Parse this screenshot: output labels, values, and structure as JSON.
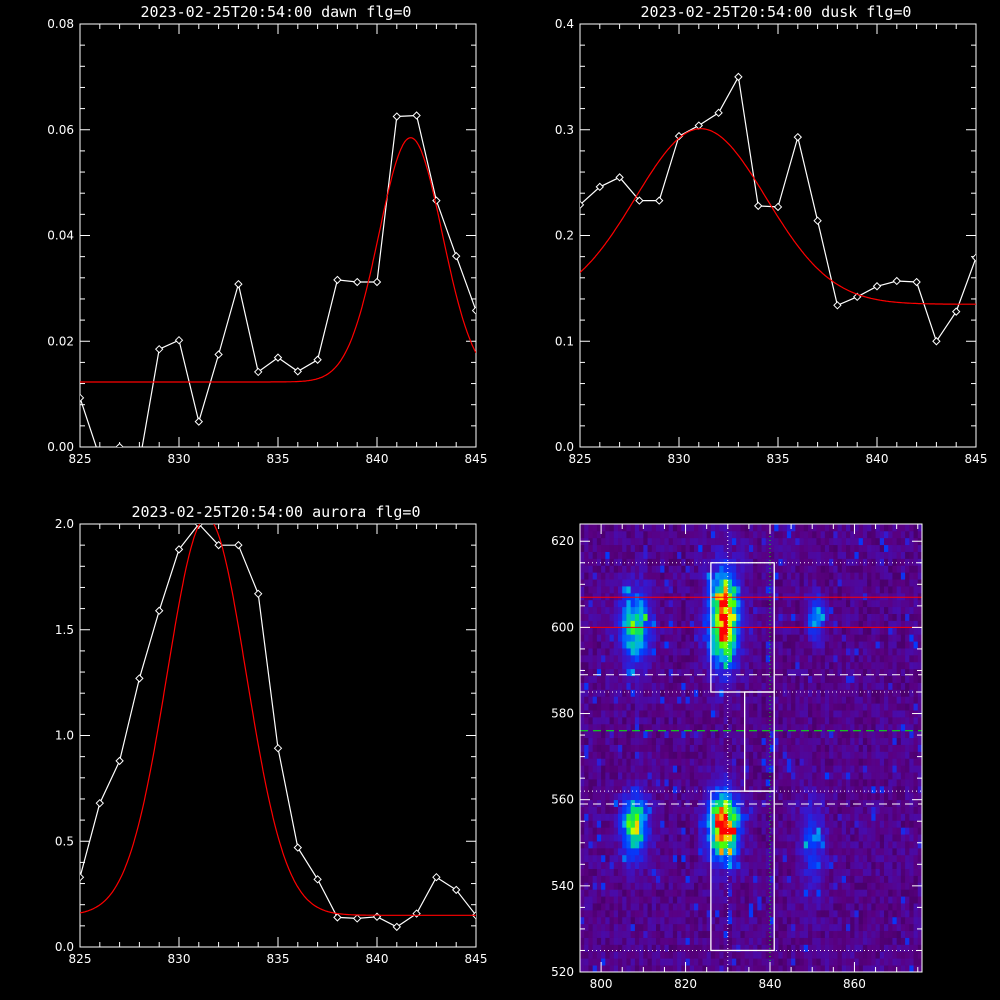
{
  "chart_data": [
    {
      "type": "line",
      "title": "2023-02-25T20:54:00 dawn flg=0",
      "xlim": [
        825,
        845
      ],
      "ylim": [
        0,
        0.08
      ],
      "xticks": [
        825,
        830,
        835,
        840,
        845
      ],
      "yticks": [
        0.0,
        0.02,
        0.04,
        0.06,
        0.08
      ],
      "ytick_labels": [
        "0.00",
        "0.02",
        "0.04",
        "0.06",
        "0.08"
      ],
      "series": [
        {
          "color": "#ffffff",
          "marker": "diamond",
          "x": [
            825,
            826,
            827,
            828,
            829,
            830,
            831,
            832,
            833,
            834,
            835,
            836,
            837,
            838,
            839,
            840,
            841,
            842,
            843,
            844,
            845
          ],
          "y": [
            0.0093,
            -0.002,
            0.0,
            -0.003,
            0.0185,
            0.0202,
            0.0048,
            0.0175,
            0.0308,
            0.0142,
            0.0169,
            0.0143,
            0.0165,
            0.0316,
            0.0312,
            0.0312,
            0.0625,
            0.0627,
            0.0466,
            0.0361,
            0.0258
          ]
        },
        {
          "color": "#ff0000",
          "marker": "none",
          "model": {
            "baseline": 0.0123,
            "amplitude": 0.0462,
            "center": 841.7,
            "sigma": 1.6
          }
        }
      ]
    },
    {
      "type": "line",
      "title": "2023-02-25T20:54:00 dusk flg=0",
      "xlim": [
        825,
        845
      ],
      "ylim": [
        0,
        0.4
      ],
      "xticks": [
        825,
        830,
        835,
        840,
        845
      ],
      "yticks": [
        0.0,
        0.1,
        0.2,
        0.3,
        0.4
      ],
      "ytick_labels": [
        "0.0",
        "0.1",
        "0.2",
        "0.3",
        "0.4"
      ],
      "series": [
        {
          "color": "#ffffff",
          "marker": "diamond",
          "x": [
            825,
            826,
            827,
            828,
            829,
            830,
            831,
            832,
            833,
            834,
            835,
            836,
            837,
            838,
            839,
            840,
            841,
            842,
            843,
            844,
            845
          ],
          "y": [
            0.229,
            0.246,
            0.255,
            0.233,
            0.233,
            0.294,
            0.304,
            0.316,
            0.35,
            0.228,
            0.227,
            0.293,
            0.214,
            0.134,
            0.142,
            0.152,
            0.157,
            0.156,
            0.1,
            0.128,
            0.179
          ]
        },
        {
          "color": "#ff0000",
          "marker": "none",
          "model": {
            "baseline": 0.135,
            "amplitude": 0.166,
            "center": 831.1,
            "sigma": 3.3
          }
        }
      ]
    },
    {
      "type": "line",
      "title": "2023-02-25T20:54:00 aurora flg=0",
      "xlim": [
        825,
        845
      ],
      "ylim": [
        0,
        2.0
      ],
      "xticks": [
        825,
        830,
        835,
        840,
        845
      ],
      "yticks": [
        0.0,
        0.5,
        1.0,
        1.5,
        2.0
      ],
      "ytick_labels": [
        "0.0",
        "0.5",
        "1.0",
        "1.5",
        "2.0"
      ],
      "series": [
        {
          "color": "#ffffff",
          "marker": "diamond",
          "x": [
            825,
            826,
            827,
            828,
            829,
            830,
            831,
            832,
            833,
            834,
            835,
            836,
            837,
            838,
            839,
            840,
            841,
            842,
            843,
            844,
            845
          ],
          "y": [
            0.33,
            0.68,
            0.88,
            1.27,
            1.59,
            1.88,
            2.0,
            1.9,
            1.9,
            1.67,
            0.94,
            0.47,
            0.32,
            0.14,
            0.135,
            0.143,
            0.095,
            0.158,
            0.33,
            0.27,
            0.15
          ]
        },
        {
          "color": "#ff0000",
          "marker": "none",
          "model": {
            "baseline": 0.15,
            "amplitude": 1.88,
            "center": 831.4,
            "sigma": 2.0
          }
        }
      ]
    },
    {
      "type": "heatmap",
      "title": "",
      "xlim": [
        795,
        876
      ],
      "ylim": [
        520,
        624
      ],
      "xticks": [
        800,
        820,
        840,
        860
      ],
      "yticks": [
        520,
        540,
        560,
        580,
        600,
        620
      ],
      "blobs": [
        {
          "x": 829,
          "y": 602,
          "sx": 2.5,
          "sy": 7.5,
          "amp": 1.0
        },
        {
          "x": 829,
          "y": 554,
          "sx": 2.5,
          "sy": 5.5,
          "amp": 1.0
        },
        {
          "x": 808,
          "y": 600,
          "sx": 2.5,
          "sy": 6.0,
          "amp": 0.62
        },
        {
          "x": 808,
          "y": 554,
          "sx": 2.2,
          "sy": 5.0,
          "amp": 0.68
        },
        {
          "x": 851,
          "y": 602,
          "sx": 1.5,
          "sy": 3.5,
          "amp": 0.42
        },
        {
          "x": 850,
          "y": 550,
          "sx": 2.2,
          "sy": 7.0,
          "amp": 0.3
        }
      ],
      "boxes": [
        {
          "x0": 826,
          "x1": 841,
          "y0": 585,
          "y1": 615
        },
        {
          "x0": 834,
          "x1": 841,
          "y0": 562,
          "y1": 585
        },
        {
          "x0": 826,
          "x1": 841,
          "y0": 525,
          "y1": 562
        }
      ],
      "hlines": [
        {
          "y": 624,
          "color": "#00ff00",
          "style": "dashed"
        },
        {
          "y": 576,
          "color": "#00ff00",
          "style": "dashed"
        },
        {
          "y": 607,
          "color": "#ff0000",
          "style": "solid"
        },
        {
          "y": 600,
          "color": "#ff0000",
          "style": "solid"
        },
        {
          "y": 589,
          "color": "#ffffff",
          "style": "dashed"
        },
        {
          "y": 559,
          "color": "#ffffff",
          "style": "dashed"
        },
        {
          "y": 615,
          "color": "#ffffff",
          "style": "dotted"
        },
        {
          "y": 585,
          "color": "#ffffff",
          "style": "dotted"
        },
        {
          "y": 562,
          "color": "#ffffff",
          "style": "dotted"
        },
        {
          "y": 525,
          "color": "#ffffff",
          "style": "dotted"
        }
      ],
      "vlines": [
        {
          "x": 830,
          "color": "#ffffff",
          "style": "dotted"
        },
        {
          "x": 840,
          "color": "#00ff00",
          "style": "dotted"
        }
      ]
    }
  ]
}
